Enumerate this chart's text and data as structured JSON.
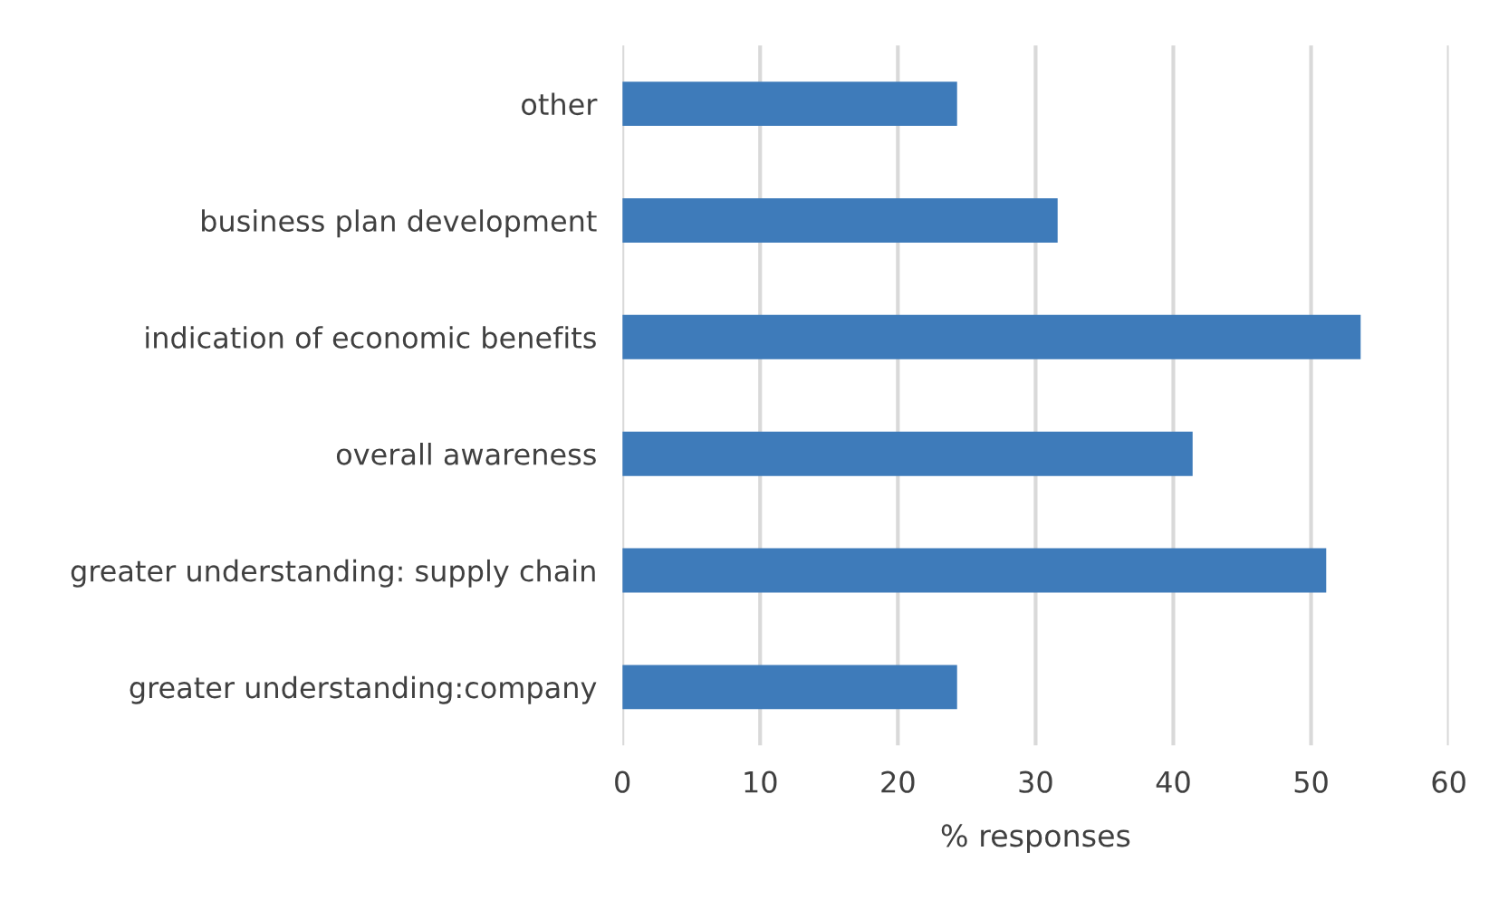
{
  "chart_data": {
    "type": "bar",
    "orientation": "horizontal",
    "xlabel": "% responses",
    "categories": [
      "other",
      "business plan development",
      "indication of economic benefits",
      "overall awareness",
      "greater understanding: supply chain",
      "greater understanding:company"
    ],
    "values": [
      24.3,
      31.6,
      53.6,
      41.4,
      51.1,
      24.3
    ],
    "color": "#3e7bba",
    "xlim": [
      0,
      60
    ],
    "xticks": [
      0,
      10,
      20,
      30,
      40,
      50,
      60
    ],
    "grid": "x",
    "legend": false
  }
}
